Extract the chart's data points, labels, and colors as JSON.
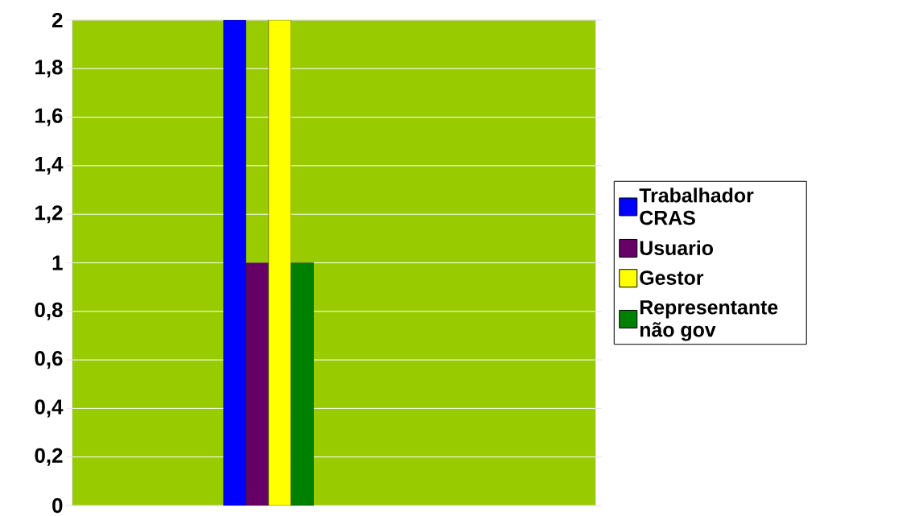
{
  "chart_data": {
    "type": "bar",
    "categories": [
      null,
      null,
      null,
      null
    ],
    "series": [
      {
        "name": "Trabalhador CRAS",
        "color": "#0000ff",
        "values": [
          null,
          2,
          null,
          null
        ]
      },
      {
        "name": "Usuario",
        "color": "#660066",
        "values": [
          null,
          1,
          null,
          null
        ]
      },
      {
        "name": "Gestor",
        "color": "#ffff00",
        "values": [
          null,
          2,
          null,
          null
        ]
      },
      {
        "name": "Representante não gov",
        "color": "#008000",
        "values": [
          null,
          1,
          null,
          null
        ]
      }
    ],
    "ylim": [
      0,
      2
    ],
    "yticks": [
      0,
      {
        "value": 0.2,
        "label": "0,2"
      },
      {
        "value": 0.4,
        "label": "0,4"
      },
      {
        "value": 0.6,
        "label": "0,6"
      },
      {
        "value": 0.8,
        "label": "0,8"
      },
      1,
      {
        "value": 1.2,
        "label": "1,2"
      },
      {
        "value": 1.4,
        "label": "1,4"
      },
      {
        "value": 1.6,
        "label": "1,6"
      },
      {
        "value": 1.8,
        "label": "1,8"
      },
      2
    ],
    "grid": "y",
    "legend": "right",
    "tick_labels": "y"
  }
}
